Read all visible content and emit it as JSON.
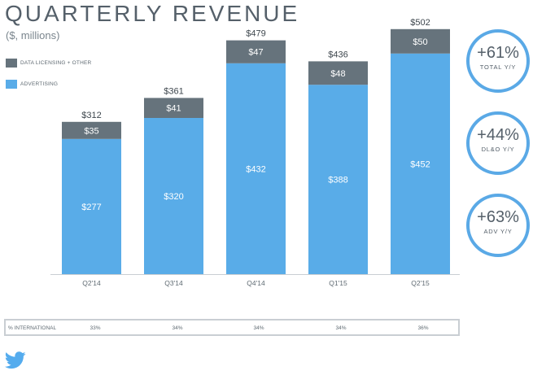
{
  "title": "QUARTERLY REVENUE",
  "subtitle": "($, millions)",
  "colors": {
    "data_licensing": "#66737c",
    "advertising": "#59ace8",
    "circle_border": "#5aa9e6",
    "twitter": "#55acee"
  },
  "legend": [
    {
      "label": "DATA LICENSING + OTHER",
      "color": "#66737c"
    },
    {
      "label": "ADVERTISING",
      "color": "#59ace8"
    }
  ],
  "chart_data": {
    "type": "bar",
    "stacked": true,
    "title": "QUARTERLY REVENUE",
    "subtitle": "($, millions)",
    "categories": [
      "Q2'14",
      "Q3'14",
      "Q4'14",
      "Q1'15",
      "Q2'15"
    ],
    "series": [
      {
        "name": "ADVERTISING",
        "values": [
          277,
          320,
          432,
          388,
          452
        ],
        "labels": [
          "$277",
          "$320",
          "$432",
          "$388",
          "$452"
        ]
      },
      {
        "name": "DATA LICENSING + OTHER",
        "values": [
          35,
          41,
          47,
          48,
          50
        ],
        "labels": [
          "$35",
          "$41",
          "$47",
          "$48",
          "$50"
        ]
      }
    ],
    "totals": [
      312,
      361,
      479,
      436,
      502
    ],
    "total_labels": [
      "$312",
      "$361",
      "$479",
      "$436",
      "$502"
    ],
    "ylim": [
      0,
      520
    ],
    "grid": false,
    "legend_position": "top-left"
  },
  "kpis": [
    {
      "value": "+61%",
      "label": "TOTAL Y/Y"
    },
    {
      "value": "+44%",
      "label": "DL&O Y/Y"
    },
    {
      "value": "+63%",
      "label": "ADV Y/Y"
    }
  ],
  "international": {
    "label": "% INTERNATIONAL",
    "values": [
      "33%",
      "34%",
      "34%",
      "34%",
      "36%"
    ]
  },
  "logo_icon": "twitter-bird-icon"
}
